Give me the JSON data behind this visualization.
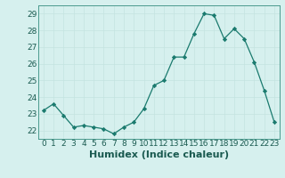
{
  "x": [
    0,
    1,
    2,
    3,
    4,
    5,
    6,
    7,
    8,
    9,
    10,
    11,
    12,
    13,
    14,
    15,
    16,
    17,
    18,
    19,
    20,
    21,
    22,
    23
  ],
  "y": [
    23.2,
    23.6,
    22.9,
    22.2,
    22.3,
    22.2,
    22.1,
    21.8,
    22.2,
    22.5,
    23.3,
    24.7,
    25.0,
    26.4,
    26.4,
    27.8,
    29.0,
    28.9,
    27.5,
    28.1,
    27.5,
    26.1,
    24.4,
    22.5
  ],
  "line_color": "#1a7a6e",
  "marker": "D",
  "marker_size": 2.2,
  "bg_color": "#d6f0ee",
  "grid_major_color": "#c4e4e0",
  "grid_minor_color": "#c4e4e0",
  "xlabel": "Humidex (Indice chaleur)",
  "ylim": [
    21.5,
    29.5
  ],
  "yticks": [
    22,
    23,
    24,
    25,
    26,
    27,
    28,
    29
  ],
  "xticks": [
    0,
    1,
    2,
    3,
    4,
    5,
    6,
    7,
    8,
    9,
    10,
    11,
    12,
    13,
    14,
    15,
    16,
    17,
    18,
    19,
    20,
    21,
    22,
    23
  ],
  "tick_fontsize": 6.5,
  "xlabel_fontsize": 8.0,
  "spine_color": "#4a9a8e"
}
